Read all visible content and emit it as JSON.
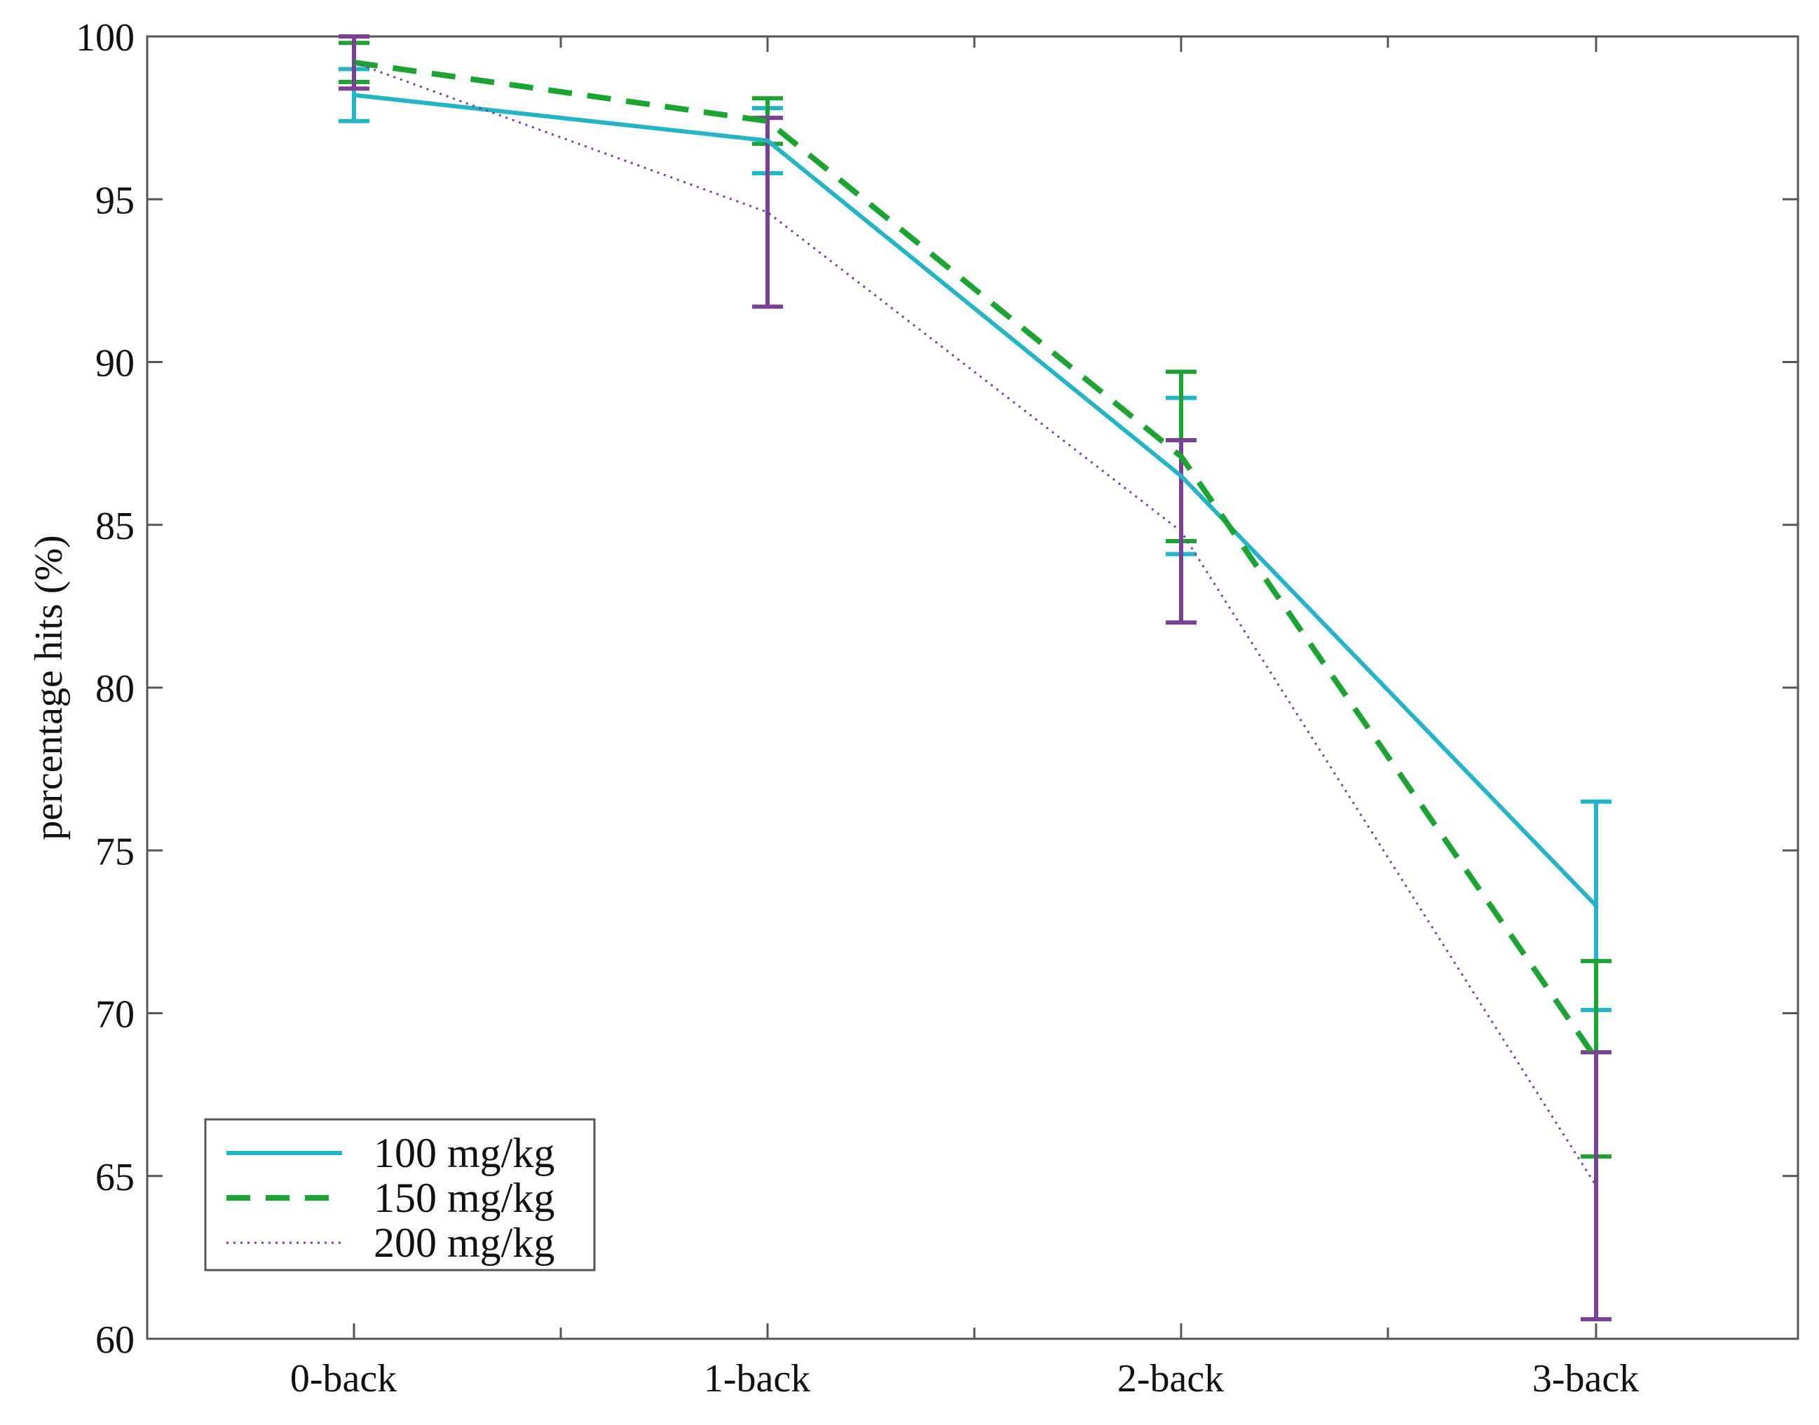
{
  "chart_data": {
    "type": "line",
    "title": "",
    "xlabel": "",
    "ylabel": "percentage hits (%)",
    "ylim": [
      60,
      100
    ],
    "yticks": [
      60,
      65,
      70,
      75,
      80,
      85,
      90,
      95,
      100
    ],
    "categories": [
      "0-back",
      "1-back",
      "2-back",
      "3-back"
    ],
    "grid": false,
    "legend_position": "bottom-left",
    "series": [
      {
        "name": "100 mg/kg",
        "color": "#22b5c9",
        "line_style": "solid",
        "values": [
          98.2,
          96.8,
          86.5,
          73.3
        ],
        "error": [
          0.8,
          1.0,
          2.4,
          3.2
        ]
      },
      {
        "name": "150 mg/kg",
        "color": "#1aa531",
        "line_style": "dashed",
        "values": [
          99.2,
          97.4,
          87.1,
          68.6
        ],
        "error": [
          0.6,
          0.7,
          2.6,
          3.0
        ]
      },
      {
        "name": "200 mg/kg",
        "color": "#7a3f96",
        "line_style": "dotted",
        "values": [
          99.2,
          94.6,
          84.8,
          64.7
        ],
        "error": [
          0.8,
          2.9,
          2.8,
          4.1
        ]
      }
    ]
  }
}
